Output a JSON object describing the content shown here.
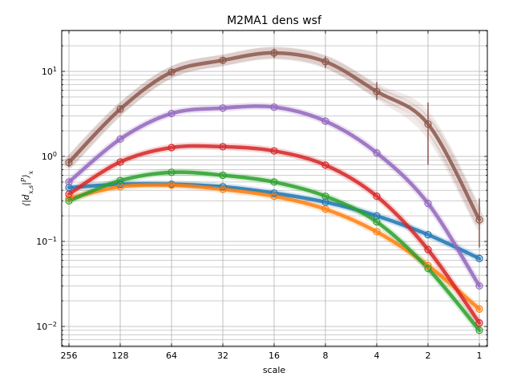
{
  "chart_data": {
    "type": "line",
    "title": "M2MA1 dens wsf",
    "xlabel": "scale",
    "ylabel": "⟨|d_{x,s}|^P⟩_x",
    "x_scale": "log2 (reversed)",
    "y_scale": "log",
    "xlim": [
      300,
      0.88
    ],
    "ylim": [
      0.006,
      30
    ],
    "grid": true,
    "legend": "none",
    "x_ticks": [
      "256",
      "128",
      "64",
      "32",
      "16",
      "8",
      "4",
      "2",
      "1"
    ],
    "y_ticks": [
      "10^{-2}",
      "10^{-1}",
      "10^{0}",
      "10^{1}"
    ],
    "x": [
      256,
      128,
      64,
      32,
      16,
      8,
      4,
      2,
      1
    ],
    "series": [
      {
        "color": "#1f77b4",
        "values": [
          0.43,
          0.47,
          0.47,
          0.44,
          0.37,
          0.29,
          0.2,
          0.12,
          0.063
        ]
      },
      {
        "color": "#ff7f0e",
        "values": [
          0.32,
          0.44,
          0.46,
          0.41,
          0.34,
          0.24,
          0.13,
          0.052,
          0.016
        ]
      },
      {
        "color": "#2ca02c",
        "values": [
          0.3,
          0.52,
          0.65,
          0.6,
          0.5,
          0.34,
          0.17,
          0.048,
          0.009
        ]
      },
      {
        "color": "#d62728",
        "values": [
          0.36,
          0.86,
          1.27,
          1.3,
          1.16,
          0.79,
          0.34,
          0.08,
          0.011
        ]
      },
      {
        "color": "#9467bd",
        "values": [
          0.5,
          1.6,
          3.2,
          3.7,
          3.8,
          2.6,
          1.1,
          0.28,
          0.03
        ]
      },
      {
        "color": "#8c564b",
        "values": [
          0.85,
          3.6,
          9.8,
          13.5,
          16.5,
          13.0,
          5.8,
          2.4,
          0.18
        ],
        "error_low": [
          0.75,
          3.3,
          9.0,
          12.5,
          14.5,
          11.0,
          4.6,
          0.8,
          0.085
        ],
        "error_high": [
          0.95,
          3.9,
          10.8,
          14.8,
          18.5,
          15.0,
          7.5,
          4.3,
          0.32
        ]
      }
    ]
  }
}
